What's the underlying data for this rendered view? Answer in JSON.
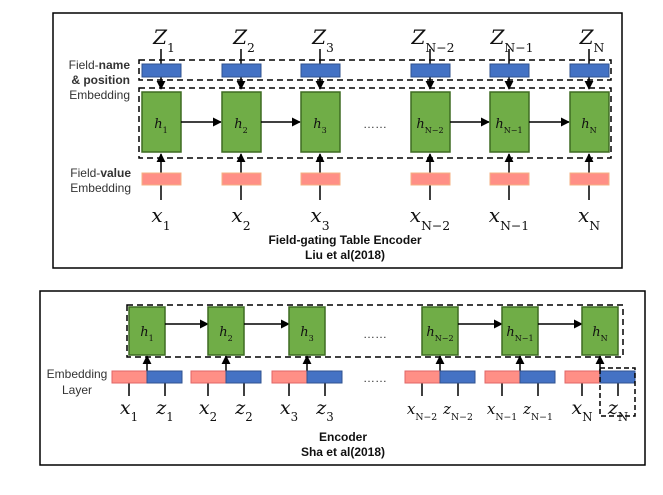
{
  "colors": {
    "green": "#70ad47",
    "green_border": "#3e6b22",
    "blue": "#4472c4",
    "blue_border": "#2f528f",
    "red": "#ff8f86",
    "red_border": "#f4b183"
  },
  "top": {
    "label_name_prefix": "Field-",
    "label_name_bold": "name",
    "label_position": "& position",
    "label_embedding": "Embedding",
    "label_value_prefix": "Field-",
    "label_value_bold": "value",
    "label_value_embedding": "Embedding",
    "ellipsis": "……",
    "caption": "Field-gating Table Encoder",
    "citation": "Liu et al(2018)",
    "columns": [
      {
        "z": "Z",
        "z_sub": "1",
        "h": "h",
        "h_sub": "1",
        "x": "x",
        "x_sub": "1"
      },
      {
        "z": "Z",
        "z_sub": "2",
        "h": "h",
        "h_sub": "2",
        "x": "x",
        "x_sub": "2"
      },
      {
        "z": "Z",
        "z_sub": "3",
        "h": "h",
        "h_sub": "3",
        "x": "x",
        "x_sub": "3"
      },
      {
        "z": "Z",
        "z_sub": "N−2",
        "h": "h",
        "h_sub": "N−2",
        "x": "x",
        "x_sub": "N−2"
      },
      {
        "z": "Z",
        "z_sub": "N−1",
        "h": "h",
        "h_sub": "N−1",
        "x": "x",
        "x_sub": "N−1"
      },
      {
        "z": "Z",
        "z_sub": "N",
        "h": "h",
        "h_sub": "N",
        "x": "x",
        "x_sub": "N"
      }
    ]
  },
  "bottom": {
    "label_embedding": "Embedding",
    "label_layer": "Layer",
    "ellipsis_top": "……",
    "ellipsis_bottom": "……",
    "caption": "Encoder",
    "citation": "Sha et al(2018)",
    "columns": [
      {
        "h": "h",
        "h_sub": "1",
        "x": "x",
        "x_sub": "1",
        "z": "z",
        "z_sub": "1"
      },
      {
        "h": "h",
        "h_sub": "2",
        "x": "x",
        "x_sub": "2",
        "z": "z",
        "z_sub": "2"
      },
      {
        "h": "h",
        "h_sub": "3",
        "x": "x",
        "x_sub": "3",
        "z": "z",
        "z_sub": "3"
      },
      {
        "h": "h",
        "h_sub": "N−2",
        "x": "x",
        "x_sub": "N−2",
        "z": "z",
        "z_sub": "N−2"
      },
      {
        "h": "h",
        "h_sub": "N−1",
        "x": "x",
        "x_sub": "N−1",
        "z": "z",
        "z_sub": "N−1"
      },
      {
        "h": "h",
        "h_sub": "N",
        "x": "x",
        "x_sub": "N",
        "z": "z",
        "z_sub": "N"
      }
    ]
  }
}
